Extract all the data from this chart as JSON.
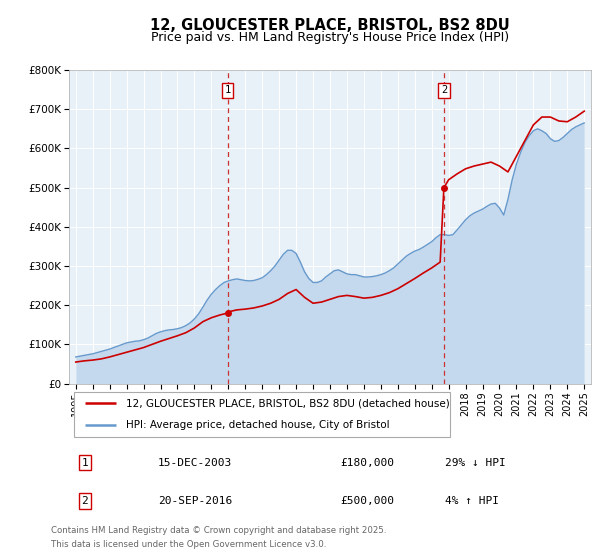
{
  "title": "12, GLOUCESTER PLACE, BRISTOL, BS2 8DU",
  "subtitle": "Price paid vs. HM Land Registry's House Price Index (HPI)",
  "title_fontsize": 10.5,
  "subtitle_fontsize": 9,
  "bg_color": "#ffffff",
  "plot_bg_color": "#e8f0f8",
  "grid_color": "#ffffff",
  "sale_color": "#cc0000",
  "hpi_color": "#6699cc",
  "hpi_fill_color": "#c5d9ee",
  "marker_color": "#cc0000",
  "vline_color": "#cc3333",
  "ylim": [
    0,
    800000
  ],
  "yticks": [
    0,
    100000,
    200000,
    300000,
    400000,
    500000,
    600000,
    700000,
    800000
  ],
  "ytick_labels": [
    "£0",
    "£100K",
    "£200K",
    "£300K",
    "£400K",
    "£500K",
    "£600K",
    "£700K",
    "£800K"
  ],
  "xlim_start": 1994.6,
  "xlim_end": 2025.4,
  "xtick_years": [
    1995,
    1996,
    1997,
    1998,
    1999,
    2000,
    2001,
    2002,
    2003,
    2004,
    2005,
    2006,
    2007,
    2008,
    2009,
    2010,
    2011,
    2012,
    2013,
    2014,
    2015,
    2016,
    2017,
    2018,
    2019,
    2020,
    2021,
    2022,
    2023,
    2024,
    2025
  ],
  "sale1_x": 2003.96,
  "sale1_y": 180000,
  "sale1_label": "1",
  "sale2_x": 2016.72,
  "sale2_y": 500000,
  "sale2_label": "2",
  "legend_items": [
    {
      "label": "12, GLOUCESTER PLACE, BRISTOL, BS2 8DU (detached house)",
      "color": "#cc0000"
    },
    {
      "label": "HPI: Average price, detached house, City of Bristol",
      "color": "#6699cc"
    }
  ],
  "table_rows": [
    {
      "num": "1",
      "date": "15-DEC-2003",
      "price": "£180,000",
      "hpi": "29% ↓ HPI"
    },
    {
      "num": "2",
      "date": "20-SEP-2016",
      "price": "£500,000",
      "hpi": "4% ↑ HPI"
    }
  ],
  "footnote": "Contains HM Land Registry data © Crown copyright and database right 2025.\nThis data is licensed under the Open Government Licence v3.0.",
  "hpi_data": {
    "years": [
      1995.0,
      1995.25,
      1995.5,
      1995.75,
      1996.0,
      1996.25,
      1996.5,
      1996.75,
      1997.0,
      1997.25,
      1997.5,
      1997.75,
      1998.0,
      1998.25,
      1998.5,
      1998.75,
      1999.0,
      1999.25,
      1999.5,
      1999.75,
      2000.0,
      2000.25,
      2000.5,
      2000.75,
      2001.0,
      2001.25,
      2001.5,
      2001.75,
      2002.0,
      2002.25,
      2002.5,
      2002.75,
      2003.0,
      2003.25,
      2003.5,
      2003.75,
      2004.0,
      2004.25,
      2004.5,
      2004.75,
      2005.0,
      2005.25,
      2005.5,
      2005.75,
      2006.0,
      2006.25,
      2006.5,
      2006.75,
      2007.0,
      2007.25,
      2007.5,
      2007.75,
      2008.0,
      2008.25,
      2008.5,
      2008.75,
      2009.0,
      2009.25,
      2009.5,
      2009.75,
      2010.0,
      2010.25,
      2010.5,
      2010.75,
      2011.0,
      2011.25,
      2011.5,
      2011.75,
      2012.0,
      2012.25,
      2012.5,
      2012.75,
      2013.0,
      2013.25,
      2013.5,
      2013.75,
      2014.0,
      2014.25,
      2014.5,
      2014.75,
      2015.0,
      2015.25,
      2015.5,
      2015.75,
      2016.0,
      2016.25,
      2016.5,
      2016.75,
      2017.0,
      2017.25,
      2017.5,
      2017.75,
      2018.0,
      2018.25,
      2018.5,
      2018.75,
      2019.0,
      2019.25,
      2019.5,
      2019.75,
      2020.0,
      2020.25,
      2020.5,
      2020.75,
      2021.0,
      2021.25,
      2021.5,
      2021.75,
      2022.0,
      2022.25,
      2022.5,
      2022.75,
      2023.0,
      2023.25,
      2023.5,
      2023.75,
      2024.0,
      2024.25,
      2024.5,
      2024.75,
      2025.0
    ],
    "values": [
      68000,
      70000,
      72000,
      74000,
      76000,
      79000,
      82000,
      85000,
      88000,
      92000,
      96000,
      100000,
      104000,
      106000,
      108000,
      109000,
      112000,
      116000,
      122000,
      128000,
      132000,
      135000,
      137000,
      138000,
      140000,
      143000,
      148000,
      155000,
      165000,
      178000,
      195000,
      213000,
      228000,
      240000,
      250000,
      258000,
      262000,
      265000,
      267000,
      265000,
      263000,
      262000,
      263000,
      266000,
      270000,
      278000,
      288000,
      300000,
      315000,
      330000,
      340000,
      340000,
      332000,
      310000,
      285000,
      268000,
      258000,
      258000,
      262000,
      272000,
      280000,
      288000,
      290000,
      285000,
      280000,
      278000,
      278000,
      275000,
      272000,
      272000,
      273000,
      275000,
      278000,
      282000,
      288000,
      295000,
      305000,
      315000,
      325000,
      332000,
      338000,
      342000,
      348000,
      355000,
      362000,
      372000,
      380000,
      380000,
      378000,
      380000,
      392000,
      405000,
      418000,
      428000,
      435000,
      440000,
      445000,
      452000,
      458000,
      460000,
      448000,
      430000,
      470000,
      520000,
      560000,
      590000,
      615000,
      632000,
      645000,
      650000,
      645000,
      638000,
      625000,
      618000,
      620000,
      628000,
      638000,
      648000,
      655000,
      660000,
      665000
    ]
  },
  "sale_price_data": {
    "years": [
      1995.0,
      1995.5,
      1996.0,
      1996.5,
      1997.0,
      1997.5,
      1998.0,
      1998.5,
      1999.0,
      1999.5,
      2000.0,
      2000.5,
      2001.0,
      2001.5,
      2002.0,
      2002.5,
      2003.0,
      2003.5,
      2003.96,
      2004.0,
      2004.5,
      2005.0,
      2005.5,
      2006.0,
      2006.5,
      2007.0,
      2007.5,
      2008.0,
      2008.5,
      2009.0,
      2009.5,
      2010.0,
      2010.5,
      2011.0,
      2011.5,
      2012.0,
      2012.5,
      2013.0,
      2013.5,
      2014.0,
      2014.5,
      2015.0,
      2015.5,
      2016.0,
      2016.5,
      2016.72,
      2017.0,
      2017.5,
      2018.0,
      2018.5,
      2019.0,
      2019.5,
      2020.0,
      2020.5,
      2021.0,
      2021.5,
      2022.0,
      2022.5,
      2023.0,
      2023.5,
      2024.0,
      2024.5,
      2025.0
    ],
    "values": [
      55000,
      58000,
      60000,
      63000,
      68000,
      74000,
      80000,
      86000,
      92000,
      100000,
      108000,
      115000,
      122000,
      130000,
      142000,
      158000,
      168000,
      175000,
      180000,
      183000,
      188000,
      190000,
      193000,
      198000,
      205000,
      215000,
      230000,
      240000,
      220000,
      205000,
      208000,
      215000,
      222000,
      225000,
      222000,
      218000,
      220000,
      225000,
      232000,
      242000,
      255000,
      268000,
      282000,
      295000,
      310000,
      500000,
      520000,
      535000,
      548000,
      555000,
      560000,
      565000,
      555000,
      540000,
      580000,
      620000,
      660000,
      680000,
      680000,
      670000,
      668000,
      680000,
      695000
    ]
  }
}
